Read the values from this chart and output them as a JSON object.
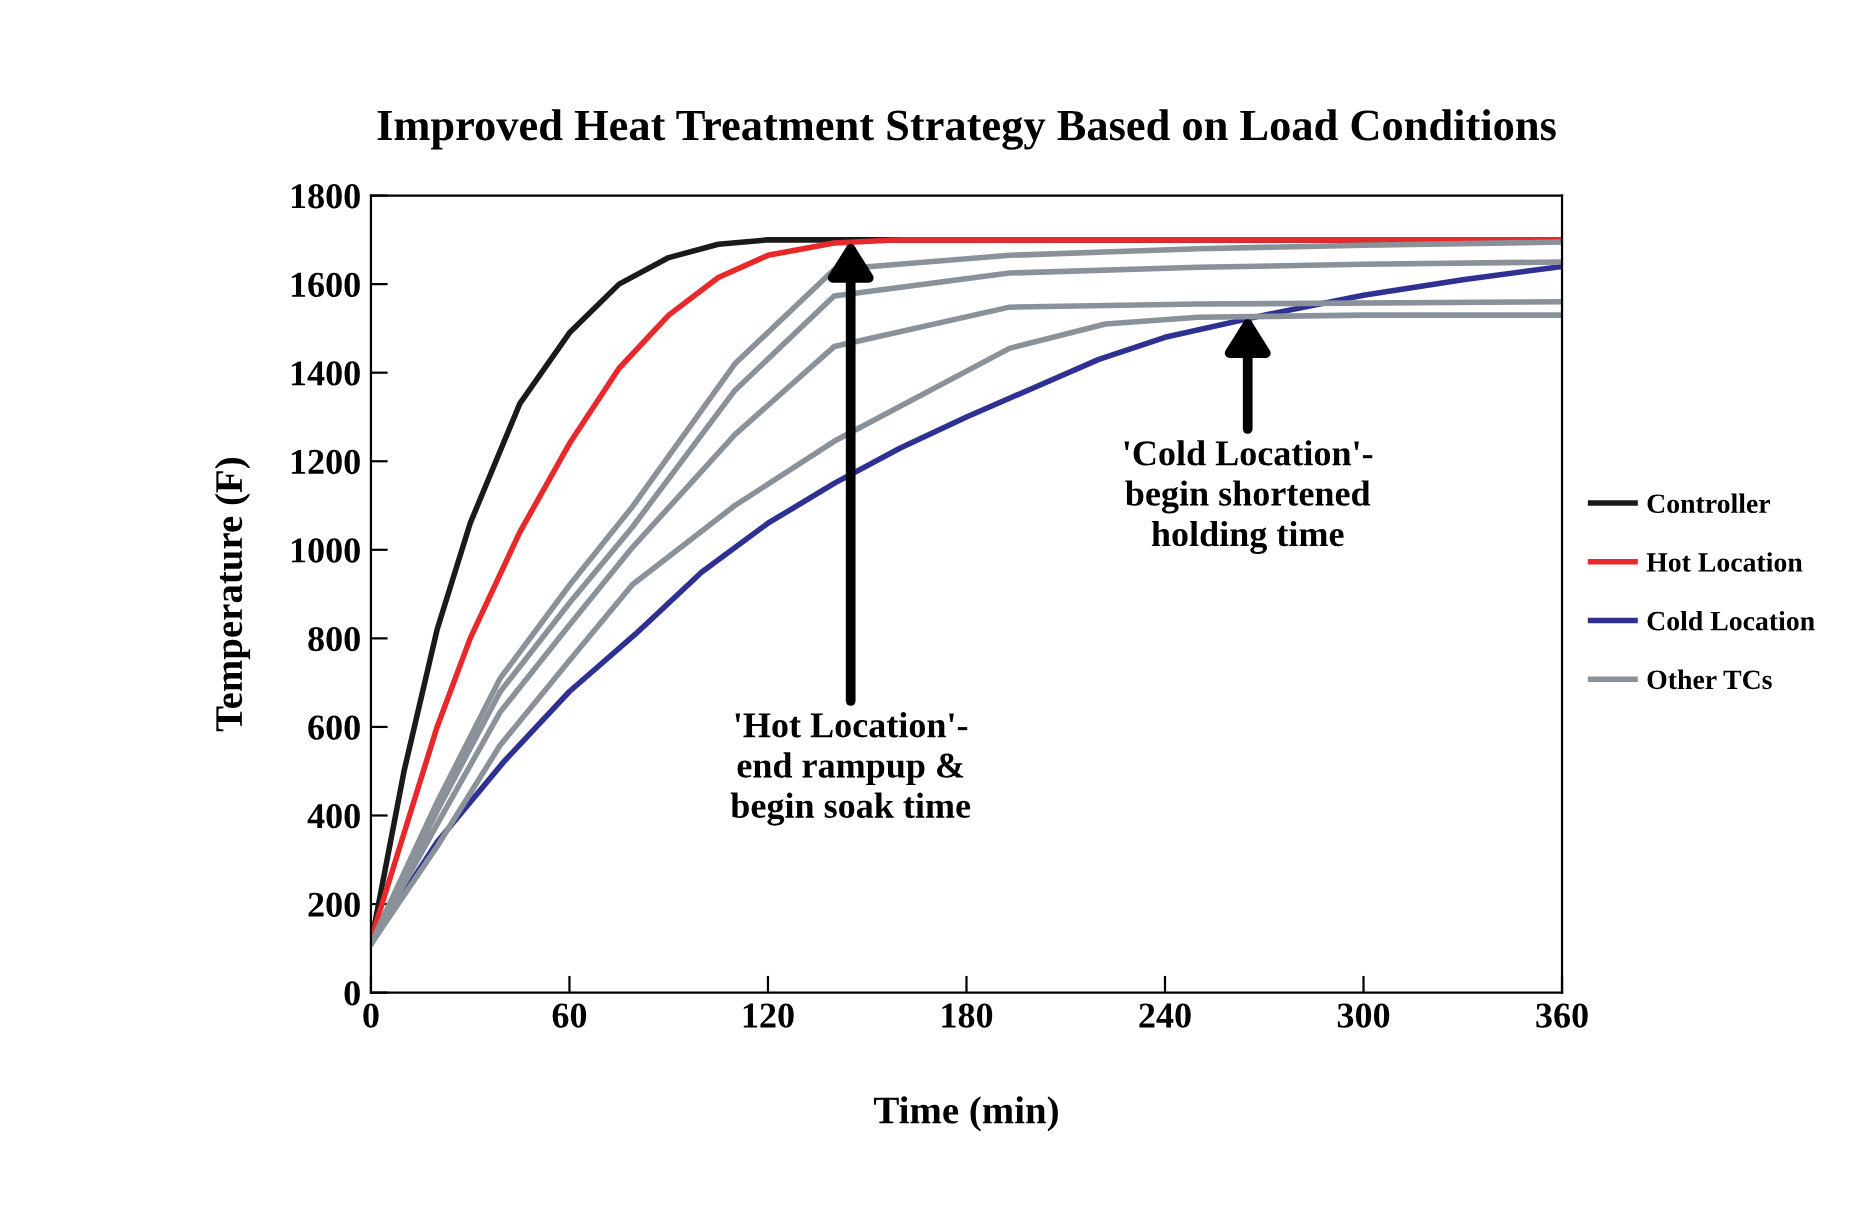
{
  "chart_data": {
    "type": "line",
    "title": "Improved Heat Treatment Strategy Based on Load Conditions",
    "xlabel": "Time (min)",
    "ylabel": "Temperature (F)",
    "xlim": [
      0,
      360
    ],
    "xticks": [
      0,
      60,
      120,
      180,
      240,
      300,
      360
    ],
    "ylim": [
      0,
      1800
    ],
    "yticks": [
      0,
      200,
      400,
      600,
      800,
      1000,
      1200,
      1400,
      1600,
      1800
    ],
    "grid": false,
    "legend": "right",
    "marker": "none",
    "line_style": "solid",
    "series": [
      {
        "name": "Controller",
        "color": "#1a1a1a",
        "x": [
          0,
          10,
          20,
          30,
          45,
          60,
          75,
          90,
          105,
          120,
          140,
          360
        ],
        "values": [
          110,
          500,
          820,
          1060,
          1330,
          1490,
          1600,
          1660,
          1690,
          1700,
          1700,
          1700
        ]
      },
      {
        "name": "Hot Location",
        "color": "#e8292b",
        "x": [
          0,
          10,
          20,
          30,
          45,
          60,
          75,
          90,
          105,
          120,
          140,
          160,
          360
        ],
        "values": [
          120,
          360,
          600,
          800,
          1040,
          1240,
          1410,
          1530,
          1615,
          1665,
          1693,
          1700,
          1700
        ]
      },
      {
        "name": "Cold Location",
        "color": "#2e3192",
        "x": [
          0,
          20,
          40,
          60,
          80,
          100,
          120,
          140,
          160,
          180,
          200,
          220,
          240,
          270,
          300,
          330,
          360
        ],
        "values": [
          110,
          340,
          520,
          680,
          810,
          950,
          1060,
          1150,
          1230,
          1300,
          1365,
          1430,
          1480,
          1530,
          1575,
          1610,
          1640
        ]
      },
      {
        "name": "Other TCs",
        "color": "#8a9199",
        "x": [
          0,
          20,
          39,
          60,
          79,
          110,
          140,
          193,
          250,
          300,
          360
        ],
        "values": [
          110,
          430,
          709,
          920,
          1097,
          1420,
          1633,
          1665,
          1680,
          1688,
          1695
        ]
      },
      {
        "color": "#8a9199",
        "x": [
          0,
          20,
          39,
          60,
          79,
          110,
          140,
          193,
          250,
          300,
          360
        ],
        "values": [
          110,
          410,
          679,
          880,
          1051,
          1360,
          1573,
          1625,
          1638,
          1645,
          1650
        ]
      },
      {
        "color": "#8a9199",
        "x": [
          0,
          20,
          39,
          60,
          79,
          110,
          140,
          193,
          250,
          360
        ],
        "values": [
          110,
          380,
          633,
          830,
          1005,
          1260,
          1459,
          1548,
          1555,
          1560
        ]
      },
      {
        "color": "#8a9199",
        "x": [
          0,
          20,
          39,
          60,
          79,
          110,
          140,
          193,
          222,
          250,
          300,
          360
        ],
        "values": [
          110,
          330,
          558,
          750,
          921,
          1100,
          1245,
          1455,
          1510,
          1525,
          1530,
          1530
        ]
      }
    ],
    "annotations": [
      {
        "text": "'Hot Location'-\nend rampup &\nbegin soak time",
        "x": 145,
        "y": 1700
      },
      {
        "text": "'Cold Location'-\nbegin shortened\nholding time",
        "x": 265,
        "y": 1530
      }
    ]
  }
}
